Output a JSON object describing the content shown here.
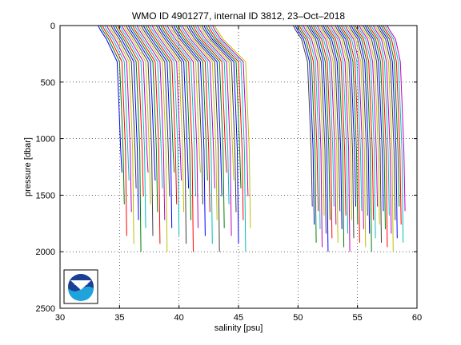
{
  "chart_data": {
    "type": "line",
    "title": "WMO ID 4901277, internal ID 3812, 23–Oct–2018",
    "xlabel": "salinity [psu]",
    "ylabel": "pressure [dbar]",
    "xlim": [
      30,
      60
    ],
    "ylim": [
      0,
      2500
    ],
    "y_reversed": true,
    "xticks": [
      "30",
      "35",
      "40",
      "45",
      "50",
      "55",
      "60"
    ],
    "yticks": [
      "0",
      "500",
      "1000",
      "1500",
      "2000",
      "2500"
    ],
    "grid": true,
    "series_colors": [
      "#0000ff",
      "#008000",
      "#ff0000",
      "#00bfbf",
      "#bf00bf",
      "#bfbf00",
      "#404040"
    ],
    "profiles": {
      "group_a": {
        "count": 55,
        "surface_start": 33.2,
        "surface_end": 43.0,
        "deep_start": 35.2,
        "deep_end": 46.0,
        "deep_pressure_min": 1300,
        "deep_pressure_max": 2000
      },
      "group_b": {
        "count": 48,
        "surface_start": 49.6,
        "surface_end": 57.5,
        "deep_start": 51.2,
        "deep_end": 59.0,
        "deep_pressure_min": 1600,
        "deep_pressure_max": 2000
      }
    },
    "logo": {
      "text": "NOAA"
    }
  }
}
